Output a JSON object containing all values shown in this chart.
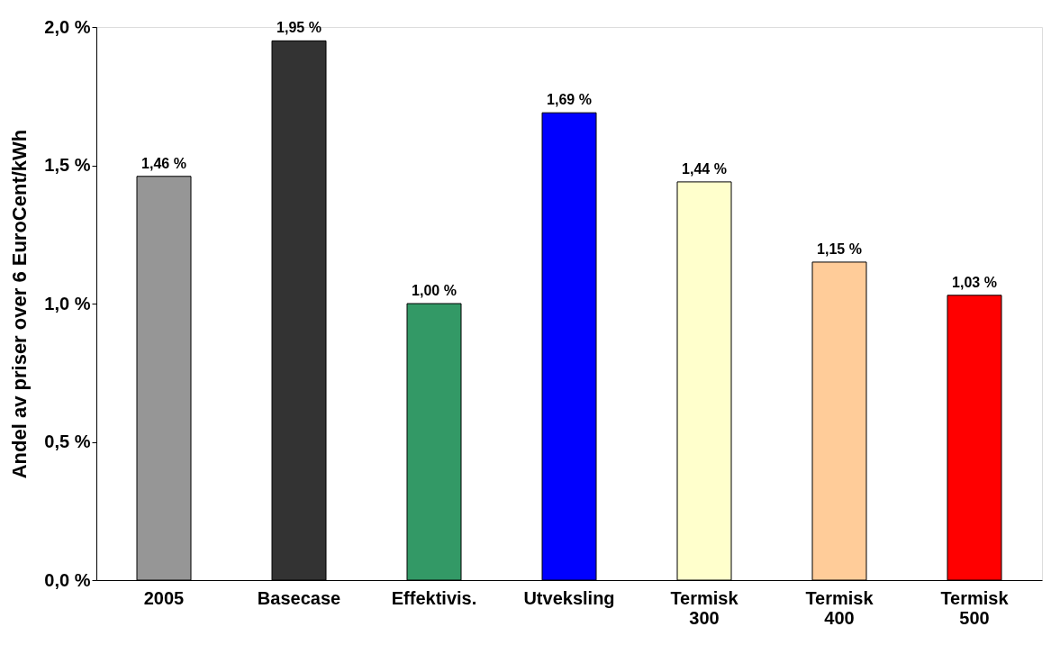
{
  "chart_data": {
    "type": "bar",
    "ylabel": "Andel av priser over 6 EuroCent/kWh",
    "categories": [
      "2005",
      "Basecase",
      "Effektivis.",
      "Utveksling",
      "Termisk\n300",
      "Termisk\n400",
      "Termisk\n500"
    ],
    "values": [
      1.46,
      1.95,
      1.0,
      1.69,
      1.44,
      1.15,
      1.03
    ],
    "colors": [
      "#969696",
      "#333333",
      "#339966",
      "#0000ff",
      "#ffffcc",
      "#ffcc99",
      "#ff0000"
    ],
    "value_labels": [
      "1,46 %",
      "1,95 %",
      "1,00 %",
      "1,69 %",
      "1,44 %",
      "1,15 %",
      "1,03 %"
    ],
    "ylim": [
      0,
      2
    ],
    "yticks": [
      {
        "value": 0,
        "label": "0,0 %"
      },
      {
        "value": 0.5,
        "label": "0,5 %"
      },
      {
        "value": 1,
        "label": "1,0 %"
      },
      {
        "value": 1.5,
        "label": "1,5 %"
      },
      {
        "value": 2,
        "label": "2,0 %"
      }
    ],
    "grid": false
  }
}
